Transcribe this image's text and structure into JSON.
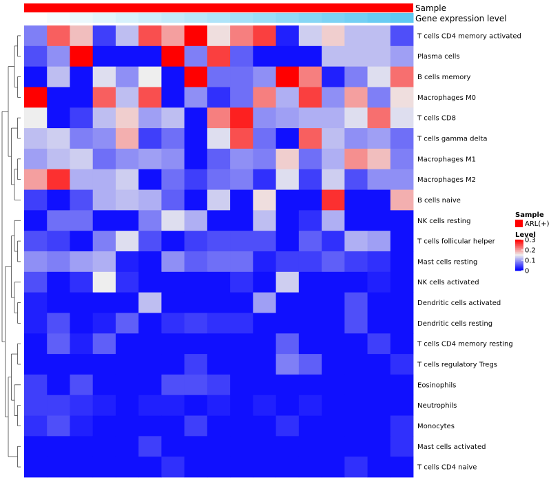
{
  "chart_data": {
    "type": "heatmap",
    "annotation_bars": [
      {
        "label": "Sample",
        "color": "#ff0000"
      },
      {
        "label": "Gene expression level",
        "gradient": [
          "#ffffff",
          "#5ec8f2"
        ]
      }
    ],
    "rows": [
      "T cells CD4 memory activated",
      "Plasma cells",
      "B cells memory",
      "Macrophages M0",
      "T cells CD8",
      "T cells gamma delta",
      "Macrophages M1",
      "Macrophages M2",
      "B cells naive",
      "NK cells resting",
      "T cells follicular helper",
      "Mast cells resting",
      "NK cells activated",
      "Dendritic cells activated",
      "Dendritic cells resting",
      "T cells CD4 memory resting",
      "T cells regulatory  Tregs",
      "Eosinophils",
      "Neutrophils",
      "Monocytes",
      "Mast cells activated",
      "T cells CD4 naive"
    ],
    "columns": 17,
    "values": [
      [
        0.08,
        0.24,
        0.18,
        0.04,
        0.12,
        0.25,
        0.2,
        0.31,
        0.16,
        0.22,
        0.26,
        0.02,
        0.13,
        0.17,
        0.12,
        0.12,
        0.05
      ],
      [
        0.05,
        0.09,
        0.31,
        0.01,
        0.01,
        0.01,
        0.3,
        0.08,
        0.26,
        0.06,
        0.01,
        0.01,
        0.01,
        0.12,
        0.12,
        0.12,
        0.1
      ],
      [
        0.01,
        0.12,
        0.01,
        0.14,
        0.09,
        0.15,
        0.01,
        0.31,
        0.07,
        0.07,
        0.09,
        0.31,
        0.22,
        0.02,
        0.08,
        0.14,
        0.23
      ],
      [
        0.31,
        0.01,
        0.01,
        0.24,
        0.12,
        0.25,
        0.01,
        0.09,
        0.03,
        0.07,
        0.22,
        0.11,
        0.26,
        0.09,
        0.2,
        0.08,
        0.16
      ],
      [
        0.15,
        0.01,
        0.04,
        0.12,
        0.17,
        0.1,
        0.12,
        0.01,
        0.22,
        0.28,
        0.09,
        0.1,
        0.11,
        0.11,
        0.14,
        0.23,
        0.14
      ],
      [
        0.12,
        0.13,
        0.08,
        0.09,
        0.19,
        0.04,
        0.07,
        0.01,
        0.14,
        0.25,
        0.07,
        0.01,
        0.24,
        0.12,
        0.09,
        0.1,
        0.07
      ],
      [
        0.1,
        0.12,
        0.13,
        0.07,
        0.09,
        0.1,
        0.09,
        0.01,
        0.06,
        0.09,
        0.08,
        0.17,
        0.07,
        0.11,
        0.21,
        0.18,
        0.08
      ],
      [
        0.2,
        0.27,
        0.11,
        0.11,
        0.13,
        0.01,
        0.07,
        0.04,
        0.07,
        0.08,
        0.03,
        0.14,
        0.04,
        0.13,
        0.05,
        0.09,
        0.09
      ],
      [
        0.04,
        0.01,
        0.05,
        0.11,
        0.12,
        0.11,
        0.06,
        0.01,
        0.13,
        0.01,
        0.16,
        0.01,
        0.01,
        0.27,
        0.01,
        0.01,
        0.19
      ],
      [
        0.01,
        0.07,
        0.07,
        0.01,
        0.01,
        0.08,
        0.14,
        0.11,
        0.01,
        0.01,
        0.12,
        0.01,
        0.03,
        0.11,
        0.01,
        0.01,
        0.01
      ],
      [
        0.05,
        0.04,
        0.01,
        0.08,
        0.14,
        0.05,
        0.01,
        0.04,
        0.05,
        0.05,
        0.05,
        0.01,
        0.06,
        0.03,
        0.11,
        0.1,
        0.01
      ],
      [
        0.09,
        0.08,
        0.1,
        0.11,
        0.02,
        0.01,
        0.09,
        0.06,
        0.07,
        0.07,
        0.02,
        0.04,
        0.04,
        0.06,
        0.04,
        0.03,
        0.01
      ],
      [
        0.05,
        0.01,
        0.03,
        0.15,
        0.03,
        0.01,
        0.01,
        0.01,
        0.01,
        0.03,
        0.01,
        0.13,
        0.01,
        0.01,
        0.01,
        0.02,
        0.01
      ],
      [
        0.02,
        0.01,
        0.01,
        0.01,
        0.01,
        0.12,
        0.01,
        0.01,
        0.01,
        0.01,
        0.1,
        0.01,
        0.01,
        0.01,
        0.05,
        0.01,
        0.01
      ],
      [
        0.02,
        0.05,
        0.01,
        0.02,
        0.06,
        0.01,
        0.03,
        0.04,
        0.03,
        0.03,
        0.01,
        0.01,
        0.01,
        0.01,
        0.05,
        0.01,
        0.01
      ],
      [
        0.01,
        0.06,
        0.02,
        0.06,
        0.01,
        0.01,
        0.01,
        0.01,
        0.01,
        0.01,
        0.01,
        0.06,
        0.01,
        0.01,
        0.01,
        0.04,
        0.01
      ],
      [
        0.01,
        0.01,
        0.01,
        0.01,
        0.01,
        0.01,
        0.01,
        0.04,
        0.01,
        0.01,
        0.01,
        0.08,
        0.06,
        0.01,
        0.01,
        0.01,
        0.03
      ],
      [
        0.04,
        0.01,
        0.05,
        0.01,
        0.01,
        0.01,
        0.05,
        0.05,
        0.04,
        0.01,
        0.01,
        0.01,
        0.01,
        0.01,
        0.01,
        0.01,
        0.01
      ],
      [
        0.04,
        0.04,
        0.03,
        0.02,
        0.01,
        0.02,
        0.02,
        0.01,
        0.02,
        0.01,
        0.02,
        0.01,
        0.02,
        0.01,
        0.01,
        0.01,
        0.01
      ],
      [
        0.03,
        0.05,
        0.02,
        0.01,
        0.01,
        0.01,
        0.01,
        0.04,
        0.01,
        0.01,
        0.01,
        0.03,
        0.01,
        0.01,
        0.01,
        0.01,
        0.03
      ],
      [
        0.01,
        0.01,
        0.01,
        0.01,
        0.01,
        0.04,
        0.01,
        0.01,
        0.01,
        0.01,
        0.01,
        0.01,
        0.01,
        0.01,
        0.01,
        0.01,
        0.03
      ],
      [
        0.01,
        0.01,
        0.01,
        0.01,
        0.01,
        0.01,
        0.03,
        0.01,
        0.01,
        0.01,
        0.01,
        0.01,
        0.01,
        0.01,
        0.03,
        0.01,
        0.01
      ]
    ],
    "color_scale": {
      "min": 0,
      "max": 0.3,
      "low": "#0000ff",
      "mid": "#eeeeee",
      "high": "#ff0000",
      "midpoint": 0.15
    },
    "legend": {
      "sample_title": "Sample",
      "sample_item": {
        "label": "ARL(+)",
        "color": "#ff0000"
      },
      "level_title": "Level",
      "ticks": [
        0.3,
        0.2,
        0.1,
        0
      ],
      "tick_labels": [
        "0.3",
        "0.2",
        "0.1",
        "0"
      ]
    }
  }
}
